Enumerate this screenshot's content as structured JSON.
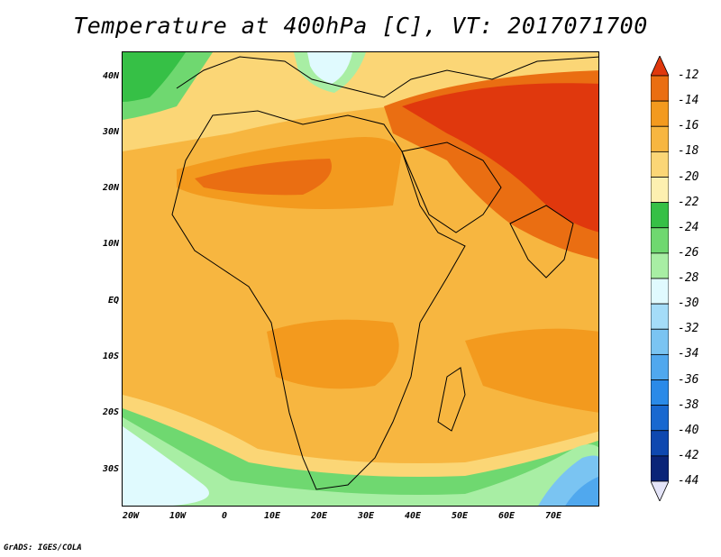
{
  "title": "Temperature at 400hPa [C], VT: 2017071700",
  "footer": "GrADS: IGES/COLA",
  "lat_labels": [
    "40N",
    "30N",
    "20N",
    "10N",
    "EQ",
    "10S",
    "20S",
    "30S"
  ],
  "lon_labels": [
    "20W",
    "10W",
    "0",
    "10E",
    "20E",
    "30E",
    "40E",
    "50E",
    "60E",
    "70E"
  ],
  "colorbar": {
    "labels": [
      "-12",
      "-14",
      "-16",
      "-18",
      "-20",
      "-22",
      "-24",
      "-26",
      "-28",
      "-30",
      "-32",
      "-34",
      "-36",
      "-38",
      "-40",
      "-42",
      "-44"
    ],
    "colors": [
      "#e0380d",
      "#ea6e12",
      "#f39a1e",
      "#f7b640",
      "#fbd676",
      "#fdf0b0",
      "#36c046",
      "#6fd870",
      "#a8eea4",
      "#e0fafe",
      "#a4dcf8",
      "#7ac4f2",
      "#50a8ee",
      "#2a8ae8",
      "#1868d0",
      "#0e48b0",
      "#0a2478",
      "#e4e4f8"
    ]
  }
}
